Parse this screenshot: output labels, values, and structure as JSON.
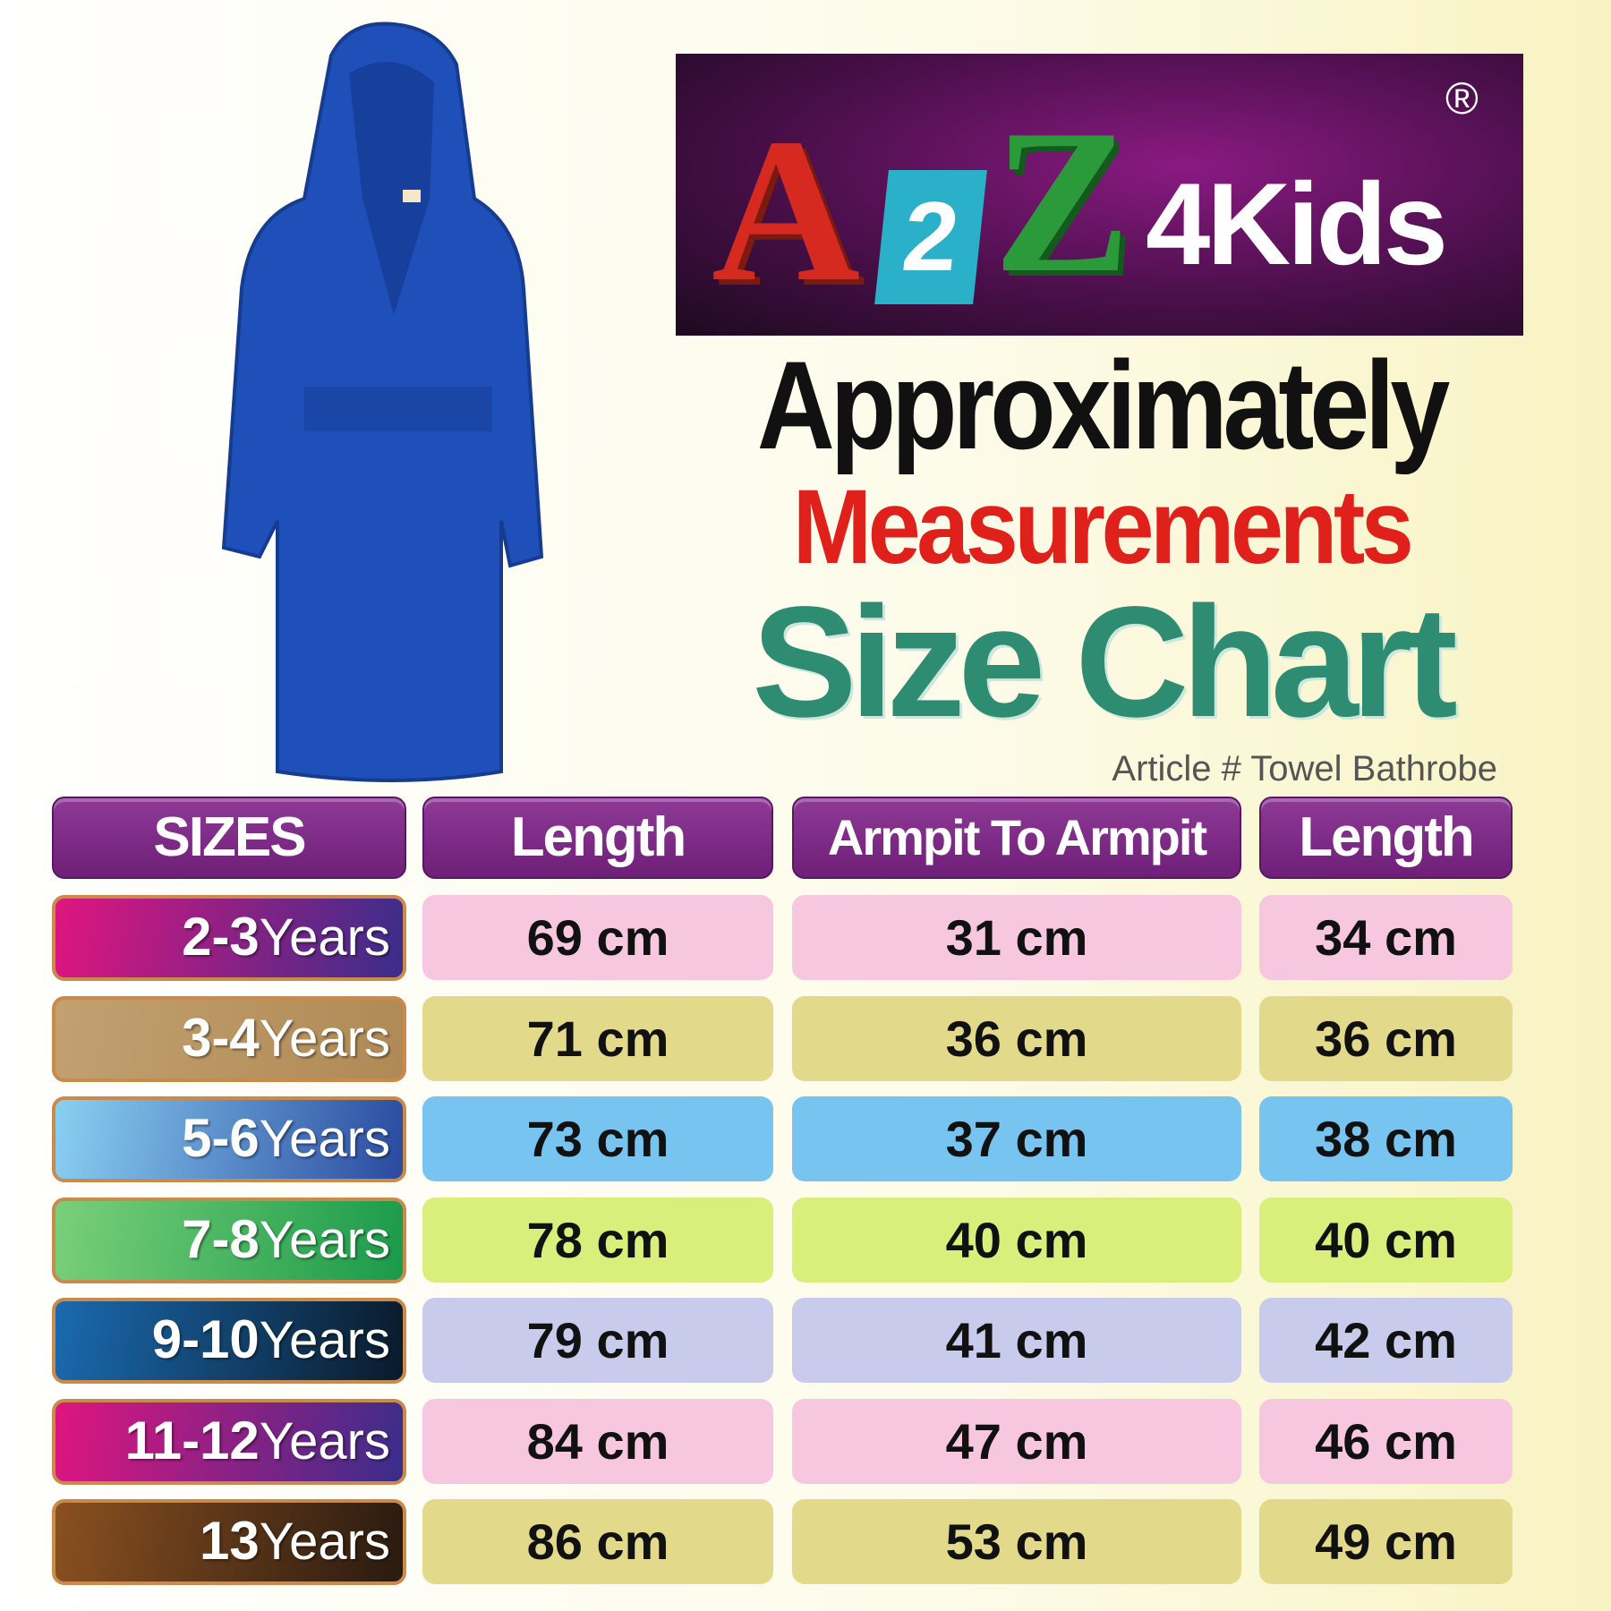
{
  "logo": {
    "text": "A2Z4Kids",
    "registered": "®",
    "letters": [
      "A",
      "2",
      "Z",
      "4Kids"
    ]
  },
  "title": {
    "line1": "Approximately",
    "line2": "Measurements",
    "line3": "Size Chart"
  },
  "article": "Article # Towel Bathrobe",
  "product_image": "blue-hooded-towel-bathrobe",
  "colors": {
    "header": "#7a2582",
    "robe": "#1f4fb8"
  },
  "table": {
    "headers": [
      "SIZES",
      "Length",
      "Armpit To Armpit",
      "Length"
    ],
    "rows": [
      {
        "num": "2-3",
        "unit": "Years",
        "values": [
          "69 cm",
          "31 cm",
          "34 cm"
        ],
        "grad": [
          "#e0157f",
          "#3a2d8a"
        ],
        "cell": "#f7c6df"
      },
      {
        "num": "3-4",
        "unit": "Years",
        "values": [
          "71 cm",
          "36 cm",
          "36 cm"
        ],
        "grad": [
          "#c2a070",
          "#b08a55"
        ],
        "cell": "#e3d98b"
      },
      {
        "num": "5-6",
        "unit": "Years",
        "values": [
          "73 cm",
          "37 cm",
          "38 cm"
        ],
        "grad": [
          "#8ad0f2",
          "#2a4aa0"
        ],
        "cell": "#78c4f0"
      },
      {
        "num": "7-8",
        "unit": "Years",
        "values": [
          "78 cm",
          "40 cm",
          "40 cm"
        ],
        "grad": [
          "#7ad07a",
          "#1a9a4a"
        ],
        "cell": "#daee7c"
      },
      {
        "num": "9-10",
        "unit": "Years",
        "values": [
          "79 cm",
          "41 cm",
          "42 cm"
        ],
        "grad": [
          "#1a6ab0",
          "#0a1a2a"
        ],
        "cell": "#c8cbeb"
      },
      {
        "num": "11-12",
        "unit": "Years",
        "values": [
          "84 cm",
          "47 cm",
          "46 cm"
        ],
        "grad": [
          "#e0157f",
          "#3a2d8a"
        ],
        "cell": "#f7c6df"
      },
      {
        "num": "13",
        "unit": "Years",
        "values": [
          "86 cm",
          "53 cm",
          "49 cm"
        ],
        "grad": [
          "#8a5020",
          "#2a1a10"
        ],
        "cell": "#e3d98b"
      }
    ]
  }
}
